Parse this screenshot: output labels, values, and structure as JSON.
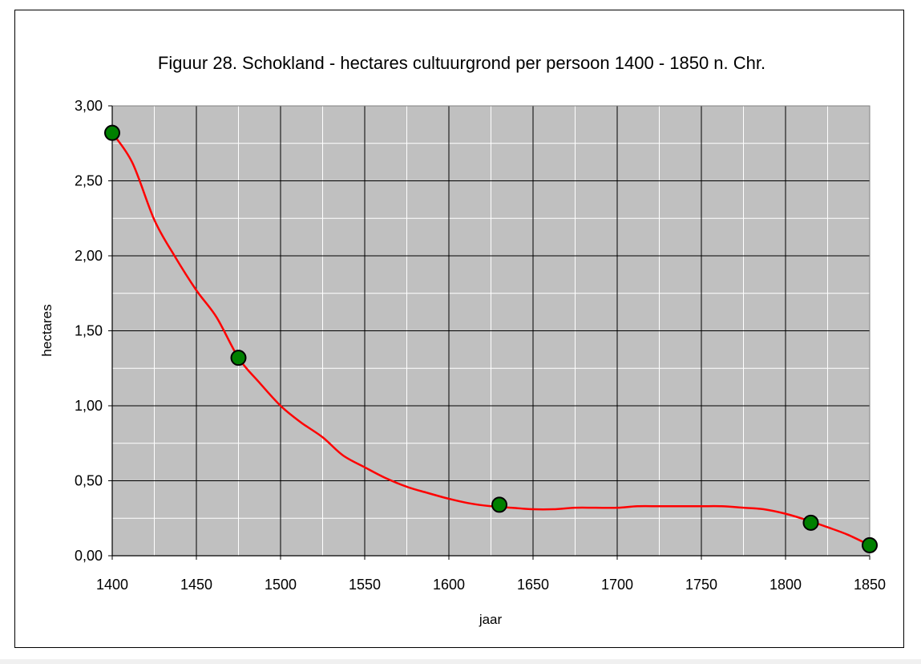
{
  "chart_data": {
    "type": "line",
    "title": "Figuur 28. Schokland - hectares cultuurgrond per persoon 1400 - 1850 n. Chr.",
    "xlabel": "jaar",
    "ylabel": "hectares",
    "xlim": [
      1400,
      1850
    ],
    "ylim": [
      0,
      3
    ],
    "x_ticks": [
      "1400",
      "1450",
      "1500",
      "1550",
      "1600",
      "1650",
      "1700",
      "1750",
      "1800",
      "1850"
    ],
    "x_tick_values": [
      1400,
      1450,
      1500,
      1550,
      1600,
      1650,
      1700,
      1750,
      1800,
      1850
    ],
    "y_ticks": [
      "0,00",
      "0,50",
      "1,00",
      "1,50",
      "2,00",
      "2,50",
      "3,00"
    ],
    "y_tick_values": [
      0,
      0.5,
      1,
      1.5,
      2,
      2.5,
      3
    ],
    "x_minor_step": 25,
    "y_minor_step": 0.25,
    "grid": true,
    "legend": "none",
    "series": [
      {
        "kind": "points",
        "x": [
          1400,
          1475,
          1630,
          1815,
          1850
        ],
        "y": [
          2.82,
          1.32,
          0.34,
          0.22,
          0.07
        ]
      },
      {
        "kind": "smoothed-line",
        "x": [
          1400,
          1412,
          1425,
          1437,
          1450,
          1462,
          1475,
          1487,
          1500,
          1512,
          1525,
          1537,
          1550,
          1562,
          1575,
          1587,
          1600,
          1612,
          1625,
          1637,
          1650,
          1662,
          1675,
          1687,
          1700,
          1712,
          1725,
          1737,
          1750,
          1762,
          1775,
          1787,
          1800,
          1812,
          1825,
          1837,
          1850
        ],
        "y": [
          2.82,
          2.62,
          2.24,
          2.0,
          1.77,
          1.59,
          1.32,
          1.16,
          1.0,
          0.89,
          0.79,
          0.67,
          0.59,
          0.52,
          0.46,
          0.42,
          0.38,
          0.35,
          0.33,
          0.32,
          0.31,
          0.31,
          0.32,
          0.32,
          0.32,
          0.33,
          0.33,
          0.33,
          0.33,
          0.33,
          0.32,
          0.31,
          0.28,
          0.24,
          0.19,
          0.14,
          0.07
        ]
      }
    ],
    "colors": {
      "plot_background": "#c0c0c0",
      "major_grid": "#000000",
      "minor_grid": "#ffffff",
      "line": "#ff0000",
      "marker_fill": "#008000",
      "marker_stroke": "#000000"
    }
  }
}
